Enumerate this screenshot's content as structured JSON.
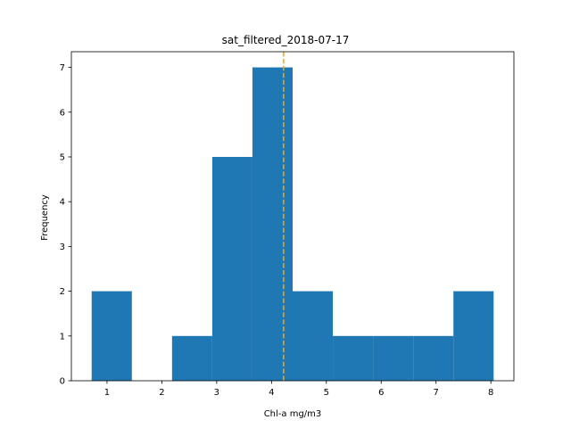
{
  "chart_data": {
    "type": "bar",
    "title": "sat_filtered_2018-07-17",
    "xlabel": "Chl-a mg/m3",
    "ylabel": "Frequency",
    "bin_edges": [
      0.72,
      1.453,
      2.186,
      2.919,
      3.652,
      4.385,
      5.118,
      5.851,
      6.584,
      7.317,
      8.05
    ],
    "values": [
      2,
      0,
      1,
      5,
      7,
      2,
      1,
      1,
      1,
      2
    ],
    "xlim": [
      0.35,
      8.42
    ],
    "ylim": [
      0,
      7.35
    ],
    "xticks": [
      1,
      2,
      3,
      4,
      5,
      6,
      7,
      8
    ],
    "yticks": [
      0,
      1,
      2,
      3,
      4,
      5,
      6,
      7
    ],
    "vline": {
      "x": 4.22,
      "style": "dashed"
    },
    "grid": false,
    "colors": {
      "bar": "#1f77b4",
      "vline": "#ffa500",
      "axis": "#000000"
    }
  }
}
